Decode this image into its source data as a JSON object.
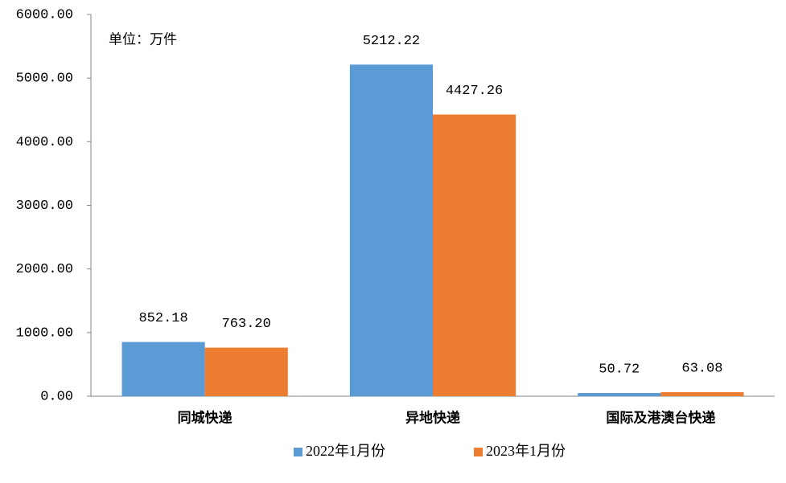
{
  "chart_data": {
    "type": "bar",
    "annotation": "单位：万件",
    "categories": [
      "同城快递",
      "异地快递",
      "国际及港澳台快递"
    ],
    "series": [
      {
        "name": "2022年1月份",
        "color": "#5b9bd5",
        "values": [
          852.18,
          5212.22,
          50.72
        ],
        "value_labels": [
          "852.18",
          "5212.22",
          "50.72"
        ]
      },
      {
        "name": "2023年1月份",
        "color": "#ed7d31",
        "values": [
          763.2,
          4427.26,
          63.08
        ],
        "value_labels": [
          "763.20",
          "4427.26",
          "63.08"
        ]
      }
    ],
    "ylim": [
      0,
      6000
    ],
    "yticks": [
      {
        "value": 0,
        "label": "0.00"
      },
      {
        "value": 1000,
        "label": "1000.00"
      },
      {
        "value": 2000,
        "label": "2000.00"
      },
      {
        "value": 3000,
        "label": "3000.00"
      },
      {
        "value": 4000,
        "label": "4000.00"
      },
      {
        "value": 5000,
        "label": "5000.00"
      },
      {
        "value": 6000,
        "label": "6000.00"
      }
    ],
    "grid": false,
    "legend": "bottom"
  }
}
